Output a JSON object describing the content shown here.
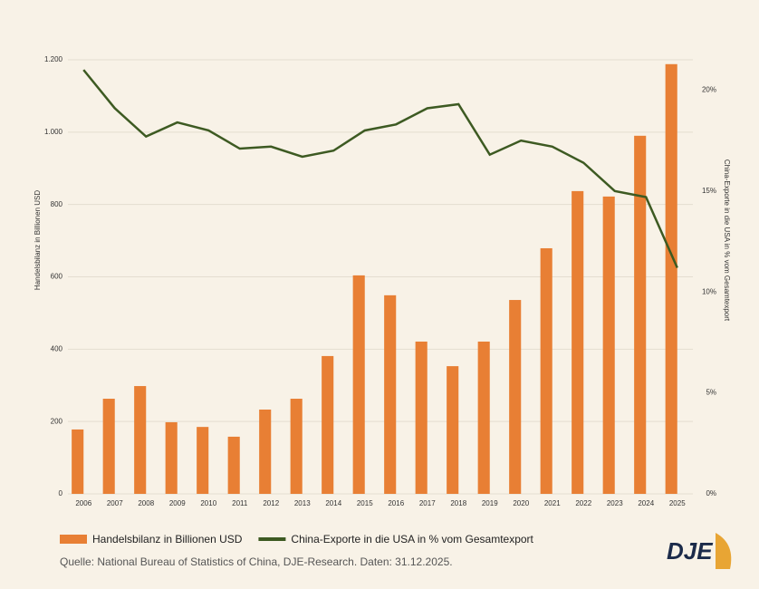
{
  "chart_data": {
    "type": "bar_line",
    "categories": [
      "2006",
      "2007",
      "2008",
      "2009",
      "2010",
      "2011",
      "2012",
      "2013",
      "2014",
      "2015",
      "2016",
      "2017",
      "2018",
      "2019",
      "2020",
      "2021",
      "2022",
      "2023",
      "2024",
      "2025"
    ],
    "series": [
      {
        "name": "Handelsbilanz in Billionen USD",
        "type": "bar",
        "color": "#e87f34",
        "values": [
          178,
          263,
          298,
          198,
          185,
          158,
          233,
          263,
          381,
          604,
          549,
          421,
          353,
          421,
          536,
          679,
          837,
          822,
          990,
          1188
        ]
      },
      {
        "name": "China-Exporte in die USA in % vom Gesamtexport",
        "type": "line",
        "color": "#3d5a22",
        "axis": "y2",
        "values": [
          21.0,
          19.1,
          17.7,
          18.4,
          18.0,
          17.1,
          17.2,
          16.7,
          17.0,
          18.0,
          18.3,
          19.1,
          19.3,
          16.8,
          17.5,
          17.2,
          16.4,
          15.0,
          14.7,
          11.2
        ]
      }
    ],
    "y_label": "Handelsbilanz in Billionen USD",
    "y2_label": "China-Exporte in die USA in % vom Gesamtexport",
    "ylim": [
      0,
      1200
    ],
    "yticks": [
      0,
      200,
      400,
      600,
      800,
      {
        "value": 1000,
        "label": "1.000"
      },
      {
        "value": 1200,
        "label": "1.200"
      }
    ],
    "y2lim": [
      0,
      21.5
    ],
    "y2ticks": [
      {
        "value": 0,
        "label": "0%"
      },
      {
        "value": 5,
        "label": "5%"
      },
      {
        "value": 10,
        "label": "10%"
      },
      {
        "value": 15,
        "label": "15%"
      },
      {
        "value": 20,
        "label": "20%"
      }
    ],
    "grid": true,
    "source": "Quelle: National Bureau of Statistics of China, DJE-Research. Daten: 31.12.2025.",
    "logo": "DJE"
  }
}
